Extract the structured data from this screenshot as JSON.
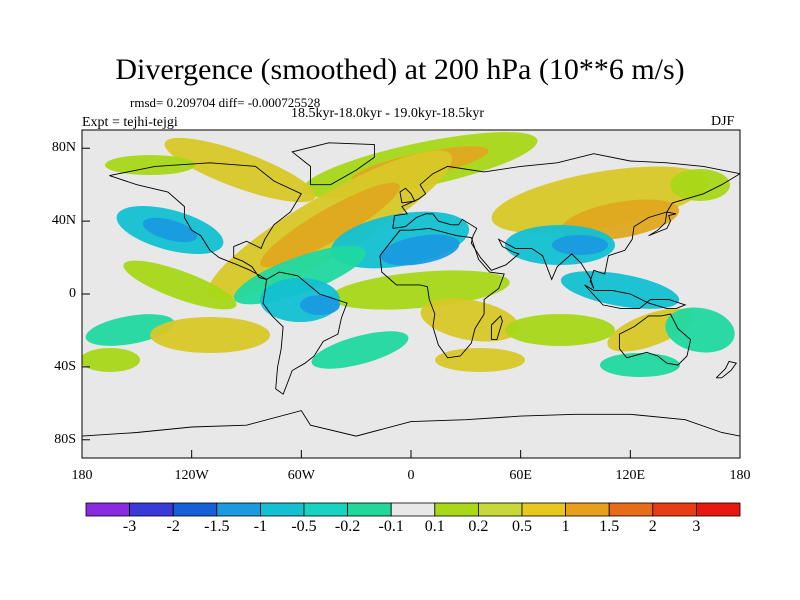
{
  "title": "Divergence (smoothed) at 200 hPa (10**6 m/s)",
  "stats": "rmsd= 0.209704  diff= -0.000725528",
  "period": "18.5kyr-18.0kyr - 19.0kyr-18.5kyr",
  "experiment": "Expt = tejhi-tejgi",
  "season": "DJF",
  "lat_labels": [
    "80N",
    "40N",
    "0",
    "40S",
    "80S"
  ],
  "lon_labels": [
    "180",
    "120W",
    "60W",
    "0",
    "60E",
    "120E",
    "180"
  ],
  "colorbar": {
    "labels": [
      "-3",
      "-2",
      "-1.5",
      "-1",
      "-0.5",
      "-0.2",
      "-0.1",
      "0.1",
      "0.2",
      "0.5",
      "1",
      "1.5",
      "2",
      "3"
    ],
    "colors": [
      "#8a2be2",
      "#3a3ad8",
      "#1560d8",
      "#1a9be0",
      "#12c0d2",
      "#16d4c0",
      "#20d89a",
      "#e8e8e8",
      "#a8d818",
      "#c8d838",
      "#e8c81c",
      "#e8a01c",
      "#e86c18",
      "#e83c14",
      "#e81810"
    ]
  },
  "map_colors": {
    "background": "#e8e8e8",
    "green_pos": "#a8d818",
    "yellow": "#d8c828",
    "orange": "#e0a820",
    "teal": "#20d8a0",
    "cyan": "#12c0d2",
    "blue": "#1a9be0",
    "coast": "#000000"
  }
}
